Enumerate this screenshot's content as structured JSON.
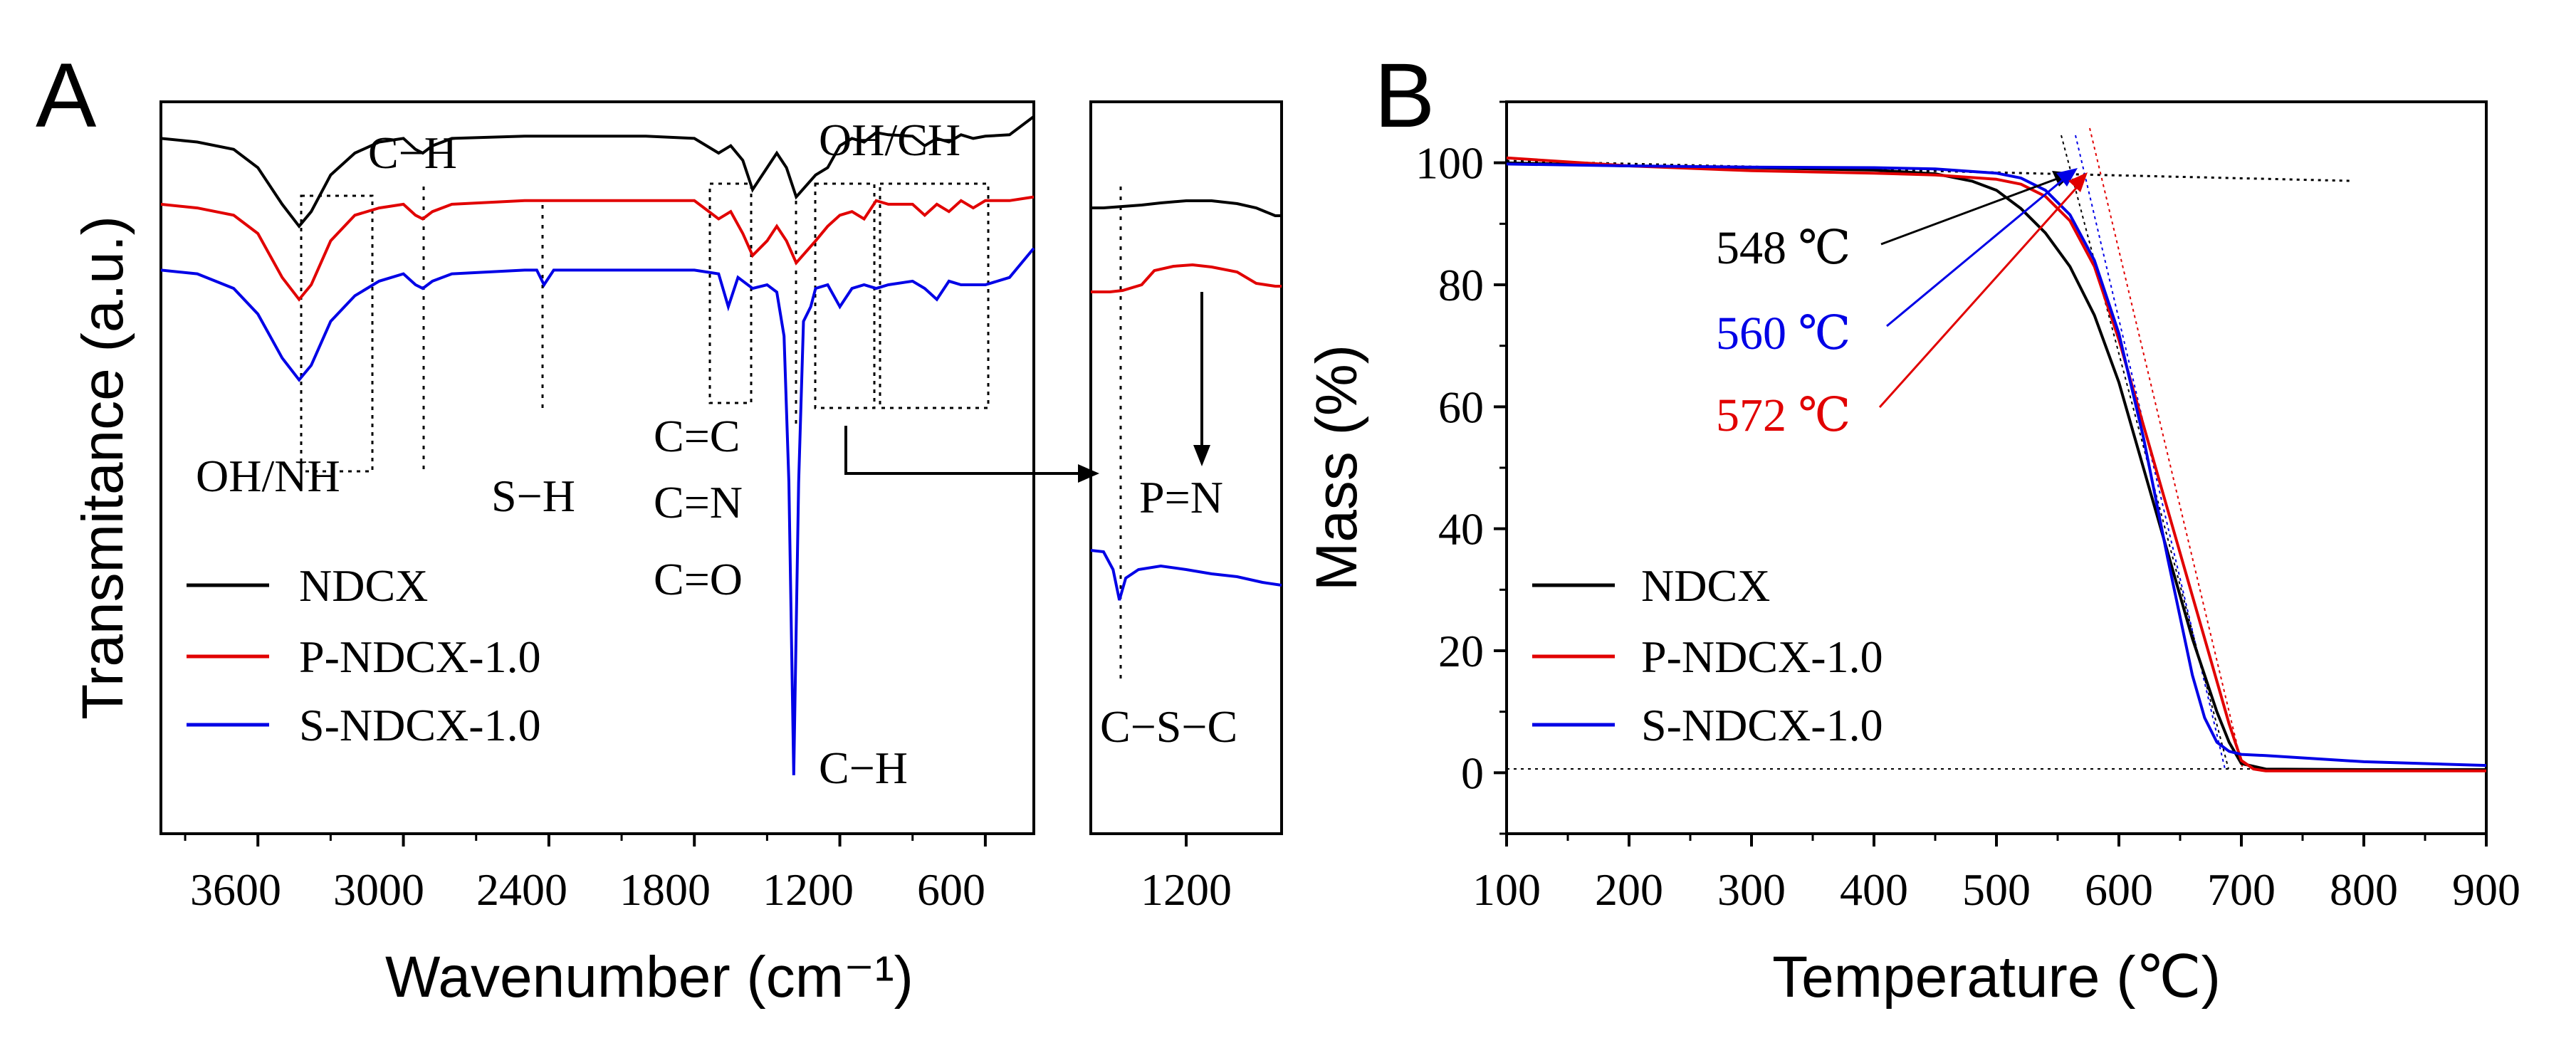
{
  "chart_data": [
    {
      "panel": "A",
      "type": "line",
      "title": "",
      "xlabel": "Wavenumber (cm⁻¹)",
      "ylabel": "Transmitance (a.u.)",
      "xlim": [
        4000,
        400
      ],
      "xticks": [
        3600,
        3000,
        2400,
        1800,
        1200,
        600
      ],
      "inset": {
        "xlim": [
          1350,
          1050
        ],
        "xticks": [
          1200
        ],
        "peak_labels": {
          "top": "P=N",
          "bottom": "C−S−C"
        }
      },
      "series": [
        {
          "name": "NDCX",
          "color": "#000000",
          "x": [
            4000,
            3850,
            3700,
            3600,
            3500,
            3430,
            3380,
            3300,
            3200,
            3100,
            3000,
            2950,
            2920,
            2880,
            2800,
            2500,
            2200,
            2000,
            1800,
            1700,
            1650,
            1600,
            1560,
            1500,
            1460,
            1420,
            1380,
            1300,
            1250,
            1200,
            1150,
            1100,
            1050,
            1000,
            900,
            850,
            800,
            750,
            700,
            650,
            600,
            500,
            400
          ],
          "y": [
            95,
            94.5,
            93.5,
            91,
            86,
            83,
            85,
            90,
            93,
            94.5,
            95,
            93.5,
            93,
            94,
            95,
            95.3,
            95.3,
            95.3,
            95,
            93,
            94,
            92,
            88,
            91,
            93,
            91,
            87,
            90,
            91,
            94,
            95,
            94.5,
            95.8,
            95.5,
            95.3,
            94,
            95,
            94.5,
            95.5,
            95,
            95.3,
            95.5,
            98
          ]
        },
        {
          "name": "P-NDCX-1.0",
          "color": "#e10000",
          "x": [
            4000,
            3850,
            3700,
            3600,
            3500,
            3430,
            3380,
            3300,
            3200,
            3100,
            3000,
            2950,
            2920,
            2880,
            2800,
            2500,
            2200,
            2000,
            1800,
            1700,
            1650,
            1600,
            1560,
            1500,
            1460,
            1420,
            1380,
            1300,
            1250,
            1200,
            1150,
            1100,
            1050,
            1000,
            900,
            850,
            800,
            750,
            700,
            650,
            600,
            500,
            400
          ],
          "y": [
            86,
            85.5,
            84.5,
            82,
            76,
            73,
            75,
            81,
            84.5,
            85.5,
            86,
            84.5,
            84,
            85,
            86,
            86.5,
            86.5,
            86.5,
            86.5,
            84,
            85,
            82,
            79,
            81,
            83,
            81,
            78,
            81,
            83,
            84.5,
            85,
            84,
            86.5,
            86,
            86,
            84.5,
            86,
            85,
            86.5,
            85.5,
            86.5,
            86.5,
            87
          ]
        },
        {
          "name": "S-NDCX-1.0",
          "color": "#0000e6",
          "x": [
            4000,
            3850,
            3700,
            3600,
            3500,
            3430,
            3380,
            3300,
            3200,
            3100,
            3000,
            2950,
            2920,
            2880,
            2800,
            2500,
            2450,
            2420,
            2380,
            2300,
            2000,
            1800,
            1700,
            1660,
            1620,
            1560,
            1500,
            1460,
            1430,
            1410,
            1390,
            1370,
            1350,
            1320,
            1300,
            1250,
            1200,
            1150,
            1100,
            1050,
            1000,
            900,
            850,
            800,
            750,
            700,
            650,
            600,
            500,
            400
          ],
          "y": [
            77,
            76.5,
            74.5,
            71,
            65,
            62,
            64,
            70,
            73.5,
            75.5,
            76.5,
            75,
            74.5,
            75.5,
            76.5,
            77,
            77,
            75,
            77,
            77,
            77,
            77,
            76.5,
            72,
            76,
            74.5,
            75,
            74,
            68,
            48,
            8,
            48,
            70,
            72,
            74.5,
            75,
            72,
            74.5,
            75,
            74.5,
            75,
            75.5,
            74.5,
            73,
            75.5,
            75,
            75,
            75,
            76,
            80
          ]
        }
      ],
      "annotations": [
        "C−H",
        "OH/CH",
        "OH/NH",
        "S−H",
        "C=C",
        "C=N",
        "C=O",
        "C−H"
      ],
      "legend_position": "lower-left"
    },
    {
      "panel": "B",
      "type": "line",
      "title": "",
      "xlabel": "Temperature (℃)",
      "ylabel": "Mass (%)",
      "xlim": [
        100,
        900
      ],
      "ylim": [
        -10,
        110
      ],
      "xticks": [
        100,
        200,
        300,
        400,
        500,
        600,
        700,
        800,
        900
      ],
      "yticks": [
        0,
        20,
        40,
        60,
        80,
        100
      ],
      "series": [
        {
          "name": "NDCX",
          "color": "#000000",
          "x": [
            100,
            200,
            300,
            400,
            450,
            480,
            500,
            520,
            540,
            560,
            580,
            600,
            620,
            640,
            660,
            680,
            690,
            700,
            720,
            800,
            900
          ],
          "y": [
            100,
            99.5,
            99.2,
            98.8,
            98.2,
            97,
            95.5,
            92.5,
            88.5,
            83,
            75,
            64,
            50,
            36,
            22,
            10,
            5,
            1.5,
            0.6,
            0.5,
            0.5
          ]
        },
        {
          "name": "P-NDCX-1.0",
          "color": "#e10000",
          "x": [
            100,
            200,
            300,
            400,
            450,
            500,
            520,
            540,
            560,
            580,
            600,
            620,
            640,
            660,
            680,
            690,
            700,
            710,
            720,
            800,
            900
          ],
          "y": [
            100.8,
            99.5,
            98.7,
            98.3,
            98,
            97.3,
            96.5,
            94.5,
            90.5,
            83,
            71,
            57,
            43,
            29,
            15,
            8,
            2,
            0.6,
            0.3,
            0.3,
            0.3
          ]
        },
        {
          "name": "S-NDCX-1.0",
          "color": "#0000e6",
          "x": [
            100,
            200,
            300,
            400,
            450,
            500,
            520,
            540,
            560,
            580,
            600,
            620,
            640,
            660,
            670,
            680,
            690,
            700,
            720,
            800,
            900
          ],
          "y": [
            99.8,
            99.5,
            99.3,
            99.2,
            99,
            98.3,
            97.5,
            95.5,
            91.5,
            84,
            72,
            55,
            35,
            16,
            9,
            5,
            3.5,
            3,
            2.8,
            1.8,
            1.2
          ]
        }
      ],
      "onset_temperatures": [
        {
          "name": "NDCX",
          "label": "548 ℃",
          "value": 548,
          "color": "#000000"
        },
        {
          "name": "S-NDCX-1.0",
          "label": "560 ℃",
          "value": 560,
          "color": "#0000e6"
        },
        {
          "name": "P-NDCX-1.0",
          "label": "572 ℃",
          "value": 572,
          "color": "#e10000"
        }
      ],
      "legend_position": "lower-left"
    }
  ],
  "panels": {
    "a": {
      "letter": "A",
      "xlabel": "Wavenumber (cm⁻¹)",
      "ylabel": "Transmitance (a.u.)",
      "ticks": [
        "3600",
        "3000",
        "2400",
        "1800",
        "1200",
        "600"
      ],
      "inset_tick": "1200",
      "annotations": {
        "ch_top": "C−H",
        "oh_ch": "OH/CH",
        "oh_nh": "OH/NH",
        "sh": "S−H",
        "cc": "C=C",
        "cn": "C=N",
        "co": "C=O",
        "ch_bottom": "C−H",
        "pn": "P=N",
        "csc": "C−S−C"
      },
      "legend": [
        "NDCX",
        "P-NDCX-1.0",
        "S-NDCX-1.0"
      ]
    },
    "b": {
      "letter": "B",
      "xlabel": "Temperature (℃)",
      "ylabel": "Mass (%)",
      "xticks": [
        "100",
        "200",
        "300",
        "400",
        "500",
        "600",
        "700",
        "800",
        "900"
      ],
      "yticks": [
        "0",
        "20",
        "40",
        "60",
        "80",
        "100"
      ],
      "onset_labels": [
        "548 ℃",
        "560 ℃",
        "572 ℃"
      ],
      "legend": [
        "NDCX",
        "P-NDCX-1.0",
        "S-NDCX-1.0"
      ]
    }
  },
  "colors": {
    "ndcx": "#000000",
    "p_ndcx": "#e10000",
    "s_ndcx": "#0000e6"
  }
}
